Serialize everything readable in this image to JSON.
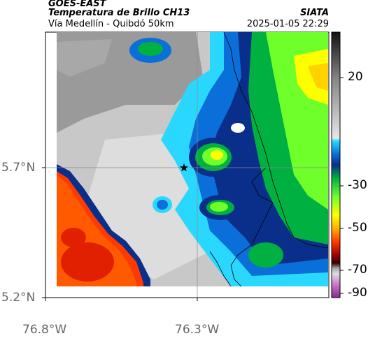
{
  "header": {
    "satellite": "GOES-EAST",
    "product": "Temperatura de Brillo CH13",
    "region": "Vía Medellín - Quibdó 50km",
    "source": "SIATA",
    "datetime": "2025-01-05 22:29"
  },
  "axes": {
    "lat_labels": [
      "5.7°N",
      "5.2°N"
    ],
    "lon_labels": [
      "76.8°W",
      "76.3°W"
    ]
  },
  "colorbar": {
    "tick_labels": [
      "20",
      "-30",
      "-50",
      "-70",
      "-90"
    ]
  },
  "map": {
    "marker": "star-icon"
  }
}
